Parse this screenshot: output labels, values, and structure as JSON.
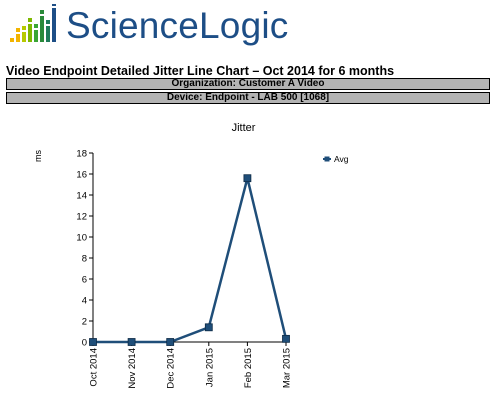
{
  "brand": {
    "name": "ScienceLogic",
    "color": "#1d4e86",
    "accent": "#f2b400"
  },
  "report": {
    "title": "Video Endpoint Detailed Jitter Line Chart – Oct 2014 for 6 months",
    "organization": "Organization: Customer A Video",
    "device": "Device: Endpoint - LAB 500 [1068]"
  },
  "chart_data": {
    "type": "line",
    "title": "Jitter",
    "ylabel": "ms",
    "xlabel": "",
    "categories": [
      "Oct 2014",
      "Nov 2014",
      "Dec 2014",
      "Jan 2015",
      "Feb 2015",
      "Mar 2015"
    ],
    "series": [
      {
        "name": "Avg",
        "values": [
          0,
          0,
          0,
          1.4,
          15.6,
          0.3
        ],
        "color": "#1f4e79"
      }
    ],
    "ylim": [
      0,
      18
    ],
    "yticks": [
      0,
      2,
      4,
      6,
      8,
      10,
      12,
      14,
      16,
      18
    ],
    "grid": false,
    "legend": "top-right"
  }
}
